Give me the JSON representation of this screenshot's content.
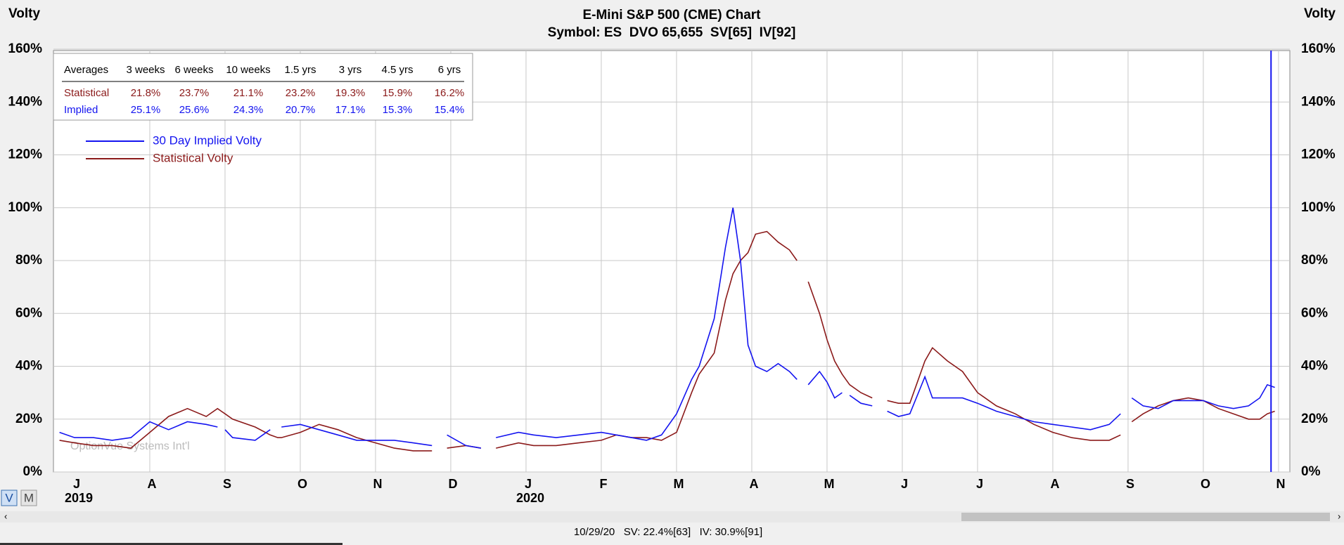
{
  "chart_data": {
    "type": "line",
    "title": "E-Mini S&P 500 (CME) Chart",
    "subtitle": "Symbol: ES  DVO 65,655  SV[65]  IV[92]",
    "y_label": "Volty",
    "watermark": "OptionVue Systems Int'l",
    "xlim": [
      -0.28,
      16.15
    ],
    "xticks": [
      {
        "value": 0,
        "label": "J"
      },
      {
        "value": 1,
        "label": "A"
      },
      {
        "value": 2,
        "label": "S"
      },
      {
        "value": 3,
        "label": "O"
      },
      {
        "value": 4,
        "label": "N"
      },
      {
        "value": 5,
        "label": "D"
      },
      {
        "value": 6,
        "label": "J"
      },
      {
        "value": 7,
        "label": "F"
      },
      {
        "value": 8,
        "label": "M"
      },
      {
        "value": 9,
        "label": "A"
      },
      {
        "value": 10,
        "label": "M"
      },
      {
        "value": 11,
        "label": "J"
      },
      {
        "value": 12,
        "label": "J"
      },
      {
        "value": 13,
        "label": "A"
      },
      {
        "value": 14,
        "label": "S"
      },
      {
        "value": 15,
        "label": "O"
      },
      {
        "value": 16,
        "label": "N"
      }
    ],
    "year_labels": [
      {
        "value": 0,
        "label": "2019"
      },
      {
        "value": 6,
        "label": "2020"
      }
    ],
    "ylim": [
      0,
      160
    ],
    "yticks": [
      {
        "value": 0,
        "label": "0%"
      },
      {
        "value": 20,
        "label": "20%"
      },
      {
        "value": 40,
        "label": "40%"
      },
      {
        "value": 60,
        "label": "60%"
      },
      {
        "value": 80,
        "label": "80%"
      },
      {
        "value": 100,
        "label": "100%"
      },
      {
        "value": 120,
        "label": "120%"
      },
      {
        "value": 140,
        "label": "140%"
      },
      {
        "value": 160,
        "label": "160%"
      }
    ],
    "grid": true,
    "cursor_x": 15.9,
    "x": [
      -0.2,
      0,
      0.25,
      0.5,
      0.75,
      1,
      1.25,
      1.5,
      1.75,
      1.9,
      1.95,
      2,
      2.1,
      2.4,
      2.6,
      2.7,
      2.75,
      3,
      3.25,
      3.5,
      3.75,
      4,
      4.25,
      4.5,
      4.75,
      4.85,
      4.95,
      5.2,
      5.4,
      5.5,
      5.6,
      5.9,
      6.1,
      6.4,
      6.7,
      7,
      7.2,
      7.4,
      7.6,
      7.8,
      8,
      8.2,
      8.3,
      8.5,
      8.65,
      8.75,
      8.85,
      8.95,
      9.05,
      9.2,
      9.35,
      9.5,
      9.6,
      9.68,
      9.75,
      9.9,
      10,
      10.1,
      10.2,
      10.25,
      10.3,
      10.45,
      10.6,
      10.7,
      10.8,
      10.95,
      11.1,
      11.3,
      11.4,
      11.6,
      11.8,
      12,
      12.25,
      12.5,
      12.75,
      13,
      13.25,
      13.5,
      13.75,
      13.9,
      13.97,
      14.05,
      14.2,
      14.4,
      14.6,
      14.8,
      15,
      15.2,
      15.4,
      15.6,
      15.75,
      15.85,
      15.95
    ],
    "series": [
      {
        "name": "30 Day Implied Volty",
        "color": "#1414f0",
        "values": [
          15,
          13,
          13,
          12,
          13,
          19,
          16,
          19,
          18,
          17,
          null,
          16,
          13,
          12,
          16,
          null,
          17,
          18,
          16,
          14,
          12,
          12,
          12,
          11,
          10,
          null,
          14,
          10,
          9,
          null,
          13,
          15,
          14,
          13,
          14,
          15,
          14,
          13,
          12,
          14,
          22,
          35,
          40,
          58,
          85,
          100,
          80,
          48,
          40,
          38,
          41,
          38,
          35,
          null,
          33,
          38,
          34,
          28,
          30,
          null,
          29,
          26,
          25,
          null,
          23,
          21,
          22,
          36,
          28,
          28,
          28,
          26,
          23,
          21,
          19,
          18,
          17,
          16,
          18,
          22,
          null,
          28,
          25,
          24,
          27,
          27,
          27,
          25,
          24,
          25,
          28,
          33,
          32
        ]
      },
      {
        "name": "Statistical Volty",
        "color": "#8b1a1a",
        "values": [
          12,
          11,
          10,
          10,
          9,
          15,
          21,
          24,
          21,
          24,
          23,
          22,
          20,
          17,
          14,
          13,
          13,
          15,
          18,
          16,
          13,
          11,
          9,
          8,
          8,
          null,
          9,
          10,
          9,
          null,
          9,
          11,
          10,
          10,
          11,
          12,
          14,
          13,
          13,
          12,
          15,
          30,
          37,
          45,
          65,
          75,
          80,
          83,
          90,
          91,
          87,
          84,
          80,
          null,
          72,
          60,
          50,
          42,
          37,
          35,
          33,
          30,
          28,
          null,
          27,
          26,
          26,
          42,
          47,
          42,
          38,
          30,
          25,
          22,
          18,
          15,
          13,
          12,
          12,
          14,
          null,
          19,
          22,
          25,
          27,
          28,
          27,
          24,
          22,
          20,
          20,
          22,
          23
        ]
      }
    ],
    "averages_table": {
      "header": [
        "Averages",
        "3 weeks",
        "6 weeks",
        "10 weeks",
        "1.5 yrs",
        "3 yrs",
        "4.5 yrs",
        "6 yrs"
      ],
      "rows": [
        [
          "Statistical",
          "21.8%",
          "23.7%",
          "21.1%",
          "23.2%",
          "19.3%",
          "15.9%",
          "16.2%"
        ],
        [
          "Implied",
          "25.1%",
          "25.6%",
          "24.3%",
          "20.7%",
          "17.1%",
          "15.3%",
          "15.4%"
        ]
      ]
    }
  },
  "ui": {
    "buttons": [
      "V",
      "M"
    ],
    "status": "10/29/20   SV: 22.4%[63]   IV: 30.9%[91]"
  }
}
